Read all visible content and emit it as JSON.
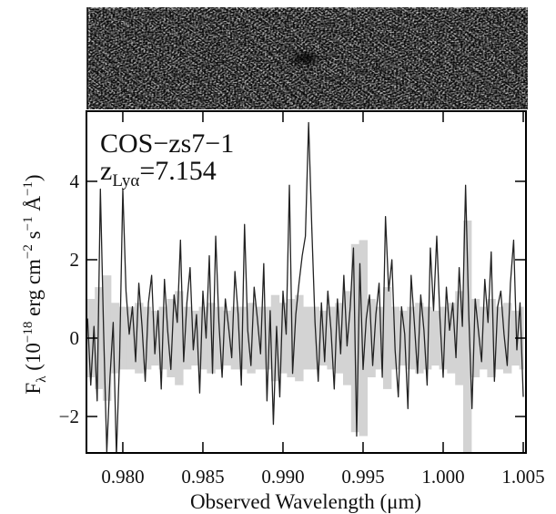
{
  "chart_data": {
    "type": "line",
    "annotation": "COS−zs7−1",
    "redshift_label": [
      "z",
      "Lyα",
      "=7.154"
    ],
    "ylabel": [
      "F",
      "λ",
      " (10",
      "−18",
      " erg cm",
      "−2",
      " s",
      "−1",
      " Å",
      "−1",
      ")"
    ],
    "xlabel": "Observed Wavelength (μm)",
    "xlim": [
      0.97773,
      1.00517
    ],
    "ylim": [
      -2.93,
      5.79
    ],
    "xticks": [
      {
        "value": 0.98,
        "label": "0.980"
      },
      {
        "value": 0.985,
        "label": "0.985"
      },
      {
        "value": 0.99,
        "label": "0.990"
      },
      {
        "value": 0.995,
        "label": "0.995"
      },
      {
        "value": 1.0,
        "label": "1.000"
      },
      {
        "value": 1.005,
        "label": "1.005"
      }
    ],
    "yticks": [
      {
        "value": -2,
        "label": "−2"
      },
      0,
      2,
      4
    ],
    "color": "#222222",
    "x": [
      0.9778,
      0.978,
      0.9782,
      0.9784,
      0.9786,
      0.9788,
      0.979,
      0.9792,
      0.9794,
      0.9796,
      0.9798,
      0.98,
      0.9802,
      0.9804,
      0.9806,
      0.9808,
      0.981,
      0.9812,
      0.9814,
      0.9816,
      0.9818,
      0.982,
      0.9822,
      0.9824,
      0.9826,
      0.9828,
      0.983,
      0.9832,
      0.9834,
      0.9836,
      0.9838,
      0.984,
      0.9842,
      0.9844,
      0.9846,
      0.9848,
      0.985,
      0.9852,
      0.9854,
      0.9856,
      0.9858,
      0.986,
      0.9862,
      0.9864,
      0.9866,
      0.9868,
      0.987,
      0.9872,
      0.9874,
      0.9876,
      0.9878,
      0.988,
      0.9882,
      0.9884,
      0.9886,
      0.9888,
      0.989,
      0.9892,
      0.9894,
      0.9896,
      0.9898,
      0.99,
      0.9902,
      0.9904,
      0.9906,
      0.9908,
      0.991,
      0.9912,
      0.9914,
      0.9916,
      0.9918,
      0.992,
      0.9922,
      0.9924,
      0.9926,
      0.9928,
      0.993,
      0.9932,
      0.9934,
      0.9936,
      0.9938,
      0.994,
      0.9942,
      0.9944,
      0.9946,
      0.9948,
      0.995,
      0.9952,
      0.9954,
      0.9956,
      0.9958,
      0.996,
      0.9962,
      0.9964,
      0.9966,
      0.9968,
      0.997,
      0.9972,
      0.9974,
      0.9976,
      0.9978,
      0.998,
      0.9982,
      0.9984,
      0.9986,
      0.9988,
      0.999,
      0.9992,
      0.9994,
      0.9996,
      0.9998,
      1.0,
      1.0002,
      1.0004,
      1.0006,
      1.0008,
      1.001,
      1.0012,
      1.0014,
      1.0016,
      1.0018,
      1.002,
      1.0022,
      1.0024,
      1.0026,
      1.0028,
      1.003,
      1.0032,
      1.0034,
      1.0036,
      1.0038,
      1.004,
      1.0042,
      1.0044,
      1.0046,
      1.0048,
      1.005
    ],
    "values": [
      0.5,
      -1.2,
      0.3,
      -1.6,
      3.8,
      0.2,
      -2.9,
      -1.0,
      0.4,
      -3.0,
      -0.5,
      3.8,
      1.2,
      0.1,
      0.8,
      -0.6,
      1.4,
      0.3,
      -1.1,
      0.9,
      1.6,
      -0.4,
      0.7,
      -1.3,
      1.5,
      0.2,
      -0.8,
      1.1,
      0.4,
      2.5,
      -0.6,
      0.9,
      1.8,
      -0.3,
      0.6,
      -1.4,
      1.2,
      0.0,
      2.1,
      -0.9,
      2.6,
      0.4,
      -1.0,
      1.0,
      0.3,
      -0.5,
      1.7,
      0.6,
      -1.2,
      2.9,
      0.2,
      -0.7,
      1.3,
      0.5,
      -0.4,
      1.9,
      -1.6,
      0.7,
      -2.2,
      0.3,
      -1.5,
      1.2,
      0.1,
      3.9,
      -0.9,
      0.6,
      1.4,
      2.1,
      2.6,
      5.5,
      2.8,
      0.4,
      -1.1,
      0.9,
      -0.6,
      1.2,
      0.2,
      -1.3,
      1.0,
      -0.4,
      1.6,
      -0.2,
      0.8,
      2.3,
      -2.5,
      1.9,
      -0.8,
      0.5,
      1.1,
      -0.7,
      0.6,
      1.4,
      -1.0,
      3.1,
      1.2,
      2.0,
      -0.3,
      -1.5,
      0.8,
      0.1,
      -1.8,
      1.6,
      0.4,
      -0.9,
      1.1,
      0.2,
      -1.2,
      2.3,
      0.7,
      2.6,
      0.5,
      -1.0,
      1.3,
      0.2,
      0.9,
      -0.5,
      1.8,
      0.3,
      3.9,
      0.6,
      -1.8,
      1.0,
      0.2,
      -0.6,
      1.5,
      0.4,
      2.2,
      -1.1,
      0.8,
      1.2,
      0.1,
      -0.7,
      1.4,
      2.5,
      -0.3,
      0.9,
      -1.5
    ],
    "error": {
      "color": "#d3d3d3",
      "x": [
        0.9775,
        0.978,
        0.9785,
        0.979,
        0.9795,
        0.98,
        0.9805,
        0.981,
        0.9815,
        0.982,
        0.9825,
        0.983,
        0.9835,
        0.984,
        0.9845,
        0.985,
        0.9855,
        0.986,
        0.9865,
        0.987,
        0.9875,
        0.988,
        0.9885,
        0.989,
        0.9895,
        0.99,
        0.9905,
        0.991,
        0.9915,
        0.992,
        0.9925,
        0.993,
        0.9935,
        0.994,
        0.9945,
        0.995,
        0.9955,
        0.996,
        0.9965,
        0.997,
        0.9975,
        0.998,
        0.9985,
        0.999,
        0.9995,
        1.0,
        1.0005,
        1.001,
        1.0015,
        1.002,
        1.0025,
        1.003,
        1.0035,
        1.004,
        1.0045,
        1.005
      ],
      "values": [
        0.9,
        1.0,
        1.3,
        1.6,
        0.9,
        0.8,
        0.8,
        0.9,
        0.8,
        0.7,
        0.8,
        1.0,
        1.2,
        0.8,
        0.7,
        0.8,
        0.9,
        0.8,
        0.7,
        0.8,
        0.8,
        0.9,
        0.8,
        0.8,
        1.1,
        0.9,
        1.0,
        1.1,
        0.8,
        0.8,
        0.7,
        0.8,
        0.9,
        1.2,
        2.4,
        2.5,
        1.0,
        0.8,
        1.3,
        0.8,
        0.7,
        0.8,
        0.9,
        0.8,
        0.7,
        0.8,
        0.9,
        1.2,
        3.0,
        1.0,
        0.8,
        1.0,
        0.8,
        0.9,
        0.7,
        0.8
      ]
    }
  }
}
